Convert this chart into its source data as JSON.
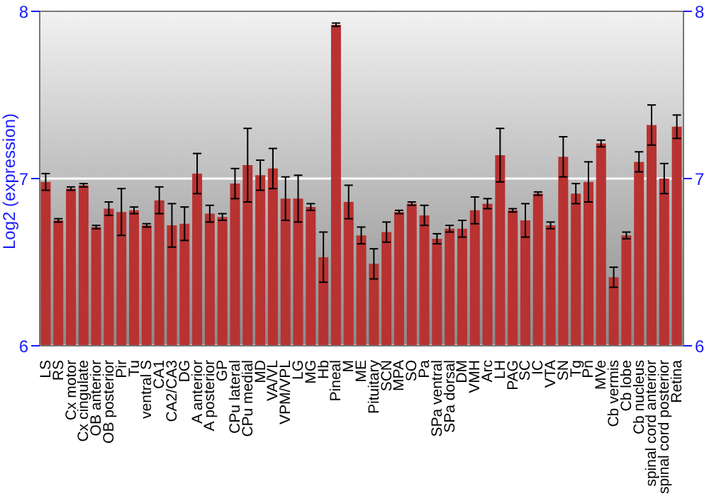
{
  "chart_data": {
    "type": "bar",
    "ylabel": "Log2 (expression)",
    "categories": [
      "LS",
      "RS",
      "Cx motor",
      "Cx cingulate",
      "OB anterior",
      "OB posterior",
      "Pir",
      "Tu",
      "ventral S",
      "CA1",
      "CA2/CA3",
      "DG",
      "A anterior",
      "A posterior",
      "GP",
      "CPu lateral",
      "CPu medial",
      "MD",
      "VA/VL",
      "VPM/VPL",
      "LG",
      "MG",
      "Hb",
      "Pineal",
      "M",
      "ME",
      "Pituitary",
      "SCN",
      "MPA",
      "SO",
      "Pa",
      "SPa ventral",
      "SPa dorsal",
      "DM",
      "VMH",
      "Arc",
      "LH",
      "PAG",
      "SC",
      "IC",
      "VTA",
      "SN",
      "Tg",
      "Pn",
      "MVe",
      "Cb vermis",
      "Cb lobe",
      "Cb nucleus",
      "spinal cord anterior",
      "spinal cord posterior",
      "Retina"
    ],
    "values": [
      6.98,
      6.75,
      6.94,
      6.96,
      6.71,
      6.82,
      6.8,
      6.81,
      6.72,
      6.87,
      6.72,
      6.73,
      7.03,
      6.79,
      6.77,
      6.97,
      7.08,
      7.02,
      7.06,
      6.88,
      6.88,
      6.83,
      6.53,
      7.92,
      6.86,
      6.66,
      6.49,
      6.68,
      6.8,
      6.85,
      6.78,
      6.64,
      6.7,
      6.7,
      6.81,
      6.85,
      7.14,
      6.81,
      6.75,
      6.91,
      6.72,
      7.13,
      6.91,
      6.98,
      7.21,
      6.41,
      6.66,
      7.1,
      7.32,
      7,
      7.31
    ],
    "errors": [
      0.05,
      0.01,
      0.01,
      0.01,
      0.01,
      0.04,
      0.14,
      0.02,
      0.01,
      0.08,
      0.13,
      0.1,
      0.12,
      0.05,
      0.02,
      0.09,
      0.22,
      0.09,
      0.12,
      0.13,
      0.14,
      0.02,
      0.15,
      0.01,
      0.1,
      0.05,
      0.09,
      0.06,
      0.01,
      0.01,
      0.06,
      0.03,
      0.02,
      0.05,
      0.08,
      0.03,
      0.16,
      0.01,
      0.1,
      0.01,
      0.02,
      0.12,
      0.06,
      0.12,
      0.02,
      0.06,
      0.02,
      0.06,
      0.12,
      0.09,
      0.07
    ],
    "color": "#b83232",
    "ylim": [
      6,
      8
    ],
    "yticks": [
      6,
      7,
      8
    ],
    "y2lim": [
      6,
      8
    ],
    "y2ticks": [
      6,
      7,
      8
    ],
    "grid": "y"
  }
}
